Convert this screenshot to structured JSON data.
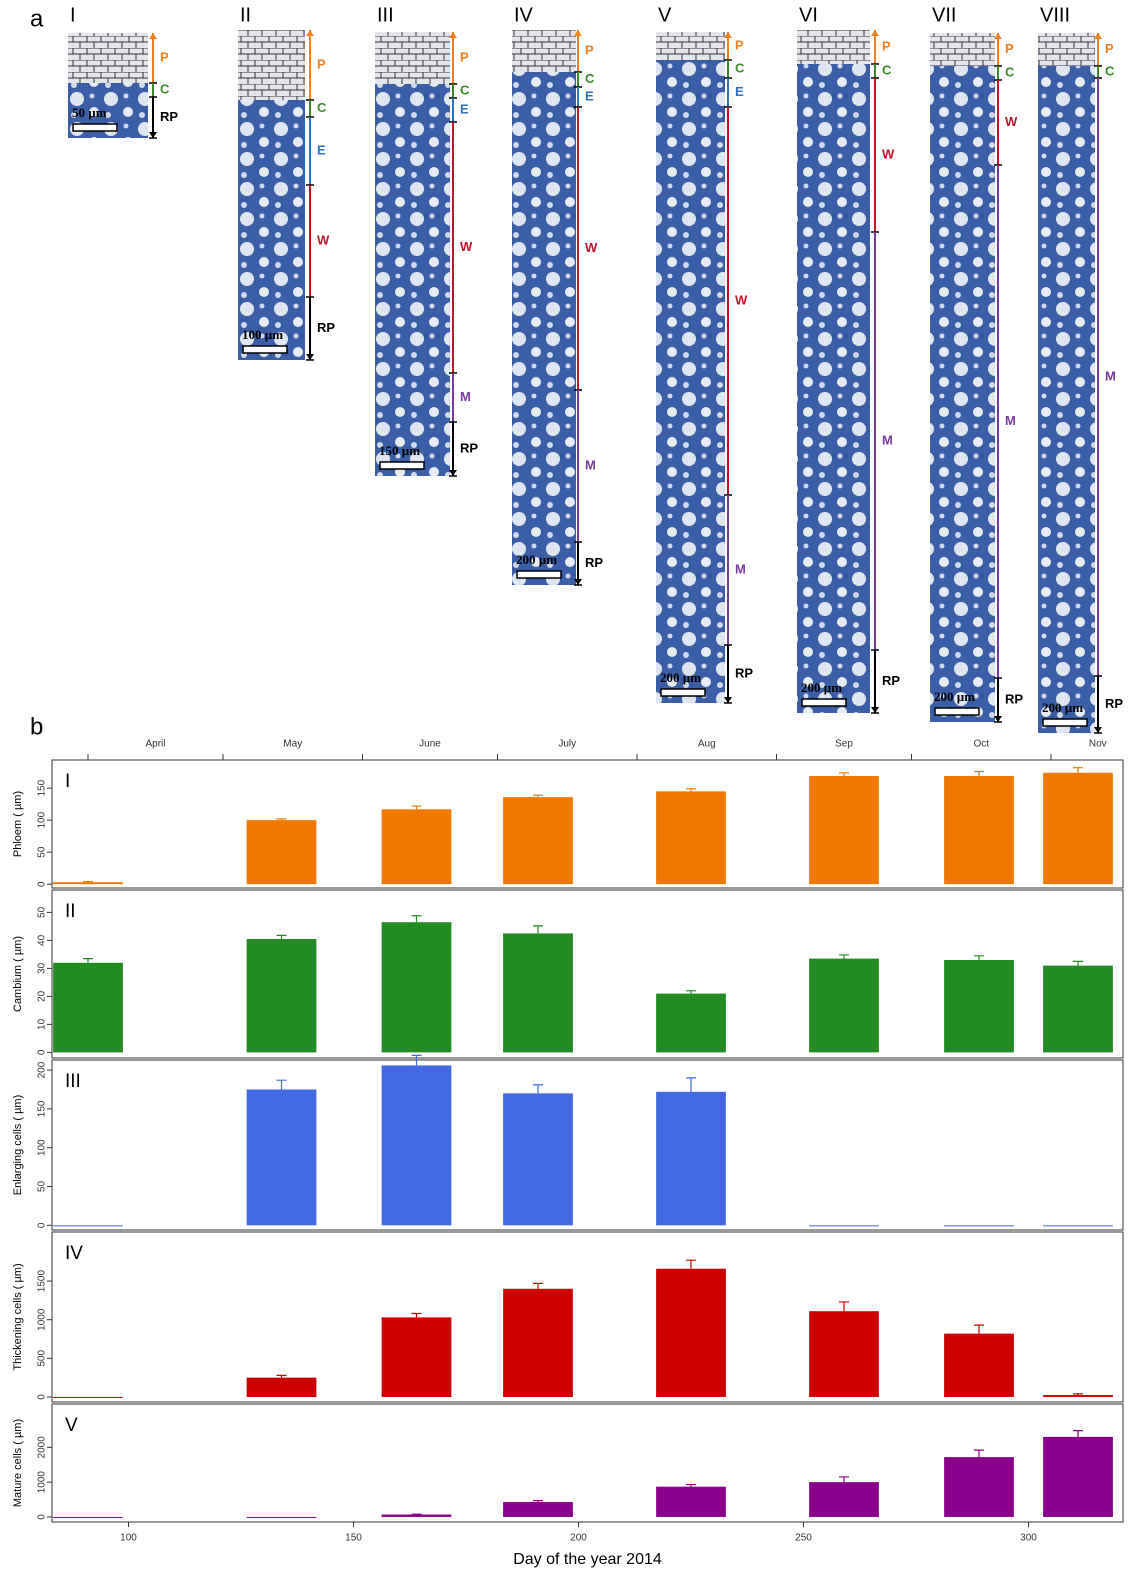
{
  "panel_labels": {
    "a": "a",
    "b": "b"
  },
  "micrographs": [
    {
      "label": "I",
      "scale_bar": "50 µm",
      "zones": [
        {
          "label": "P",
          "color": "#f07f20"
        },
        {
          "label": "C",
          "color": "#3a8a2a"
        },
        {
          "label": "RP",
          "color": "#000000"
        }
      ]
    },
    {
      "label": "II",
      "scale_bar": "100 µm",
      "zones": [
        {
          "label": "P",
          "color": "#f07f20"
        },
        {
          "label": "C",
          "color": "#3a8a2a"
        },
        {
          "label": "E",
          "color": "#2f72c0"
        },
        {
          "label": "W",
          "color": "#c0142a"
        },
        {
          "label": "RP",
          "color": "#000000"
        }
      ]
    },
    {
      "label": "III",
      "scale_bar": "150 µm",
      "zones": [
        {
          "label": "P",
          "color": "#f07f20"
        },
        {
          "label": "C",
          "color": "#3a8a2a"
        },
        {
          "label": "E",
          "color": "#2f72c0"
        },
        {
          "label": "W",
          "color": "#c0142a"
        },
        {
          "label": "M",
          "color": "#7a3aa0"
        },
        {
          "label": "RP",
          "color": "#000000"
        }
      ]
    },
    {
      "label": "IV",
      "scale_bar": "200 µm",
      "zones": [
        {
          "label": "P",
          "color": "#f07f20"
        },
        {
          "label": "C",
          "color": "#3a8a2a"
        },
        {
          "label": "E",
          "color": "#2f72c0"
        },
        {
          "label": "W",
          "color": "#c0142a"
        },
        {
          "label": "M",
          "color": "#7a3aa0"
        },
        {
          "label": "RP",
          "color": "#000000"
        }
      ]
    },
    {
      "label": "V",
      "scale_bar": "200 µm",
      "zones": [
        {
          "label": "P",
          "color": "#f07f20"
        },
        {
          "label": "C",
          "color": "#3a8a2a"
        },
        {
          "label": "E",
          "color": "#2f72c0"
        },
        {
          "label": "W",
          "color": "#c0142a"
        },
        {
          "label": "M",
          "color": "#7a3aa0"
        },
        {
          "label": "RP",
          "color": "#000000"
        }
      ]
    },
    {
      "label": "VI",
      "scale_bar": "200 µm",
      "zones": [
        {
          "label": "P",
          "color": "#f07f20"
        },
        {
          "label": "C",
          "color": "#3a8a2a"
        },
        {
          "label": "W",
          "color": "#c0142a"
        },
        {
          "label": "M",
          "color": "#7a3aa0"
        },
        {
          "label": "RP",
          "color": "#000000"
        }
      ]
    },
    {
      "label": "VII",
      "scale_bar": "200 µm",
      "zones": [
        {
          "label": "P",
          "color": "#f07f20"
        },
        {
          "label": "C",
          "color": "#3a8a2a"
        },
        {
          "label": "W",
          "color": "#c0142a"
        },
        {
          "label": "M",
          "color": "#7a3aa0"
        },
        {
          "label": "RP",
          "color": "#000000"
        }
      ]
    },
    {
      "label": "VIII",
      "scale_bar": "200 µm",
      "zones": [
        {
          "label": "P",
          "color": "#f07f20"
        },
        {
          "label": "C",
          "color": "#3a8a2a"
        },
        {
          "label": "M",
          "color": "#7a3aa0"
        },
        {
          "label": "RP",
          "color": "#000000"
        }
      ]
    }
  ],
  "chart_data": [
    {
      "type": "bar",
      "panel": "I",
      "ylabel": "Phloem ( µm)",
      "color": "#f07800",
      "x2ticks": [
        91,
        121,
        152,
        182,
        213,
        244,
        274,
        305
      ],
      "x2labels": [
        "April",
        "May",
        "June",
        "July",
        "Aug",
        "Sep",
        "Oct",
        "Nov"
      ],
      "x": [
        91,
        134,
        164,
        191,
        225,
        259,
        289,
        311
      ],
      "values": [
        3,
        100,
        117,
        136,
        145,
        169,
        169,
        174
      ],
      "errors": [
        1,
        2,
        5,
        3,
        4,
        5,
        7,
        8
      ],
      "xlim": [
        83,
        321
      ],
      "ylim": [
        -6,
        194
      ],
      "yticks": [
        0,
        50,
        100,
        150
      ]
    },
    {
      "type": "bar",
      "panel": "II",
      "ylabel": "Cambium ( µm)",
      "color": "#228b22",
      "x": [
        91,
        134,
        164,
        191,
        225,
        259,
        289,
        311
      ],
      "values": [
        32,
        40.5,
        46.5,
        42.5,
        21,
        33.5,
        33,
        31
      ],
      "errors": [
        1.5,
        1.3,
        2.3,
        2.7,
        1,
        1.3,
        1.5,
        1.5
      ],
      "xlim": [
        83,
        321
      ],
      "ylim": [
        -2,
        58
      ],
      "yticks": [
        0,
        10,
        20,
        30,
        40,
        50
      ]
    },
    {
      "type": "bar",
      "panel": "III",
      "ylabel": "Enlarging cells ( µm)",
      "color": "#4169e1",
      "x": [
        91,
        134,
        164,
        191,
        225,
        259,
        289,
        311
      ],
      "values": [
        0,
        175,
        206,
        170,
        172,
        0,
        0,
        0
      ],
      "errors": [
        0,
        12,
        13,
        11,
        18,
        0,
        0,
        0
      ],
      "xlim": [
        83,
        321
      ],
      "ylim": [
        -6,
        213
      ],
      "yticks": [
        0,
        50,
        100,
        150,
        200
      ]
    },
    {
      "type": "bar",
      "panel": "IV",
      "ylabel": "Thickening cells ( µm)",
      "color": "#cc0000",
      "x": [
        91,
        134,
        164,
        191,
        225,
        259,
        289,
        311
      ],
      "values": [
        0,
        250,
        1030,
        1400,
        1660,
        1110,
        820,
        25
      ],
      "errors": [
        0,
        30,
        50,
        70,
        110,
        120,
        110,
        15
      ],
      "xlim": [
        83,
        321
      ],
      "ylim": [
        -65,
        2135
      ],
      "yticks": [
        0,
        500,
        1000,
        1500
      ]
    },
    {
      "type": "bar",
      "panel": "V",
      "ylabel": "Mature cells ( µm)",
      "color": "#8b008b",
      "x": [
        91,
        134,
        164,
        191,
        225,
        259,
        289,
        311
      ],
      "values": [
        0,
        0,
        70,
        430,
        870,
        1000,
        1720,
        2300
      ],
      "errors": [
        0,
        0,
        10,
        40,
        60,
        150,
        200,
        180
      ],
      "xlim": [
        83,
        321
      ],
      "ylim": [
        -145,
        3245
      ],
      "yticks": [
        0,
        1000,
        2000
      ],
      "xticks": [
        100,
        150,
        200,
        250,
        300
      ],
      "xlabel": "Day of the year 2014"
    }
  ]
}
